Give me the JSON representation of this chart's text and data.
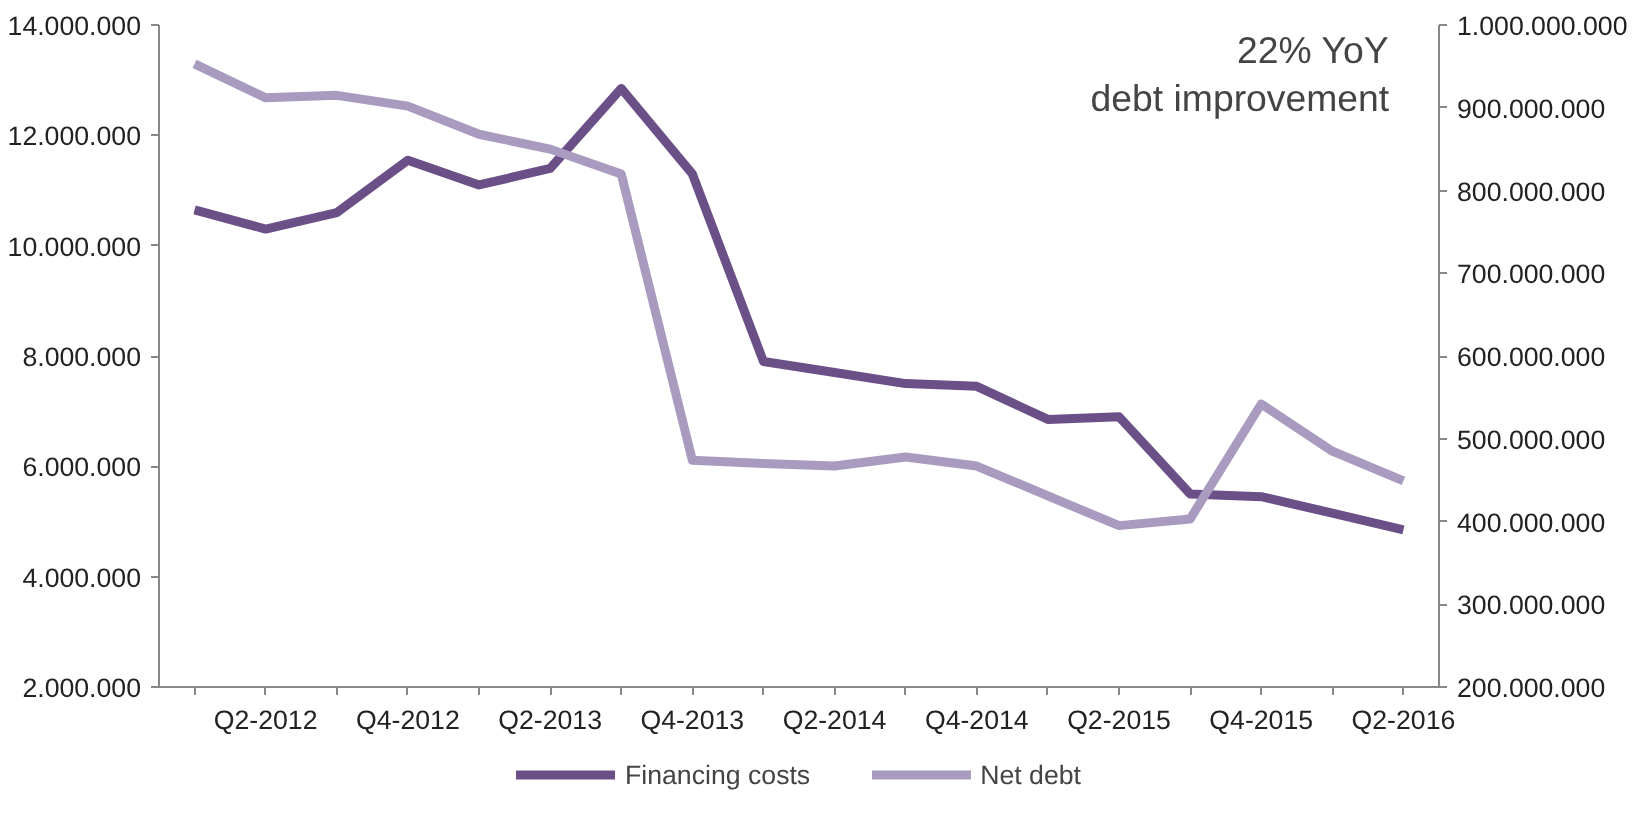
{
  "chart_data": {
    "type": "line",
    "categories": [
      null,
      "Q2-2012",
      null,
      "Q4-2012",
      null,
      "Q2-2013",
      null,
      "Q4-2013",
      null,
      "Q2-2014",
      null,
      "Q4-2014",
      null,
      "Q2-2015",
      null,
      "Q4-2015",
      null,
      "Q2-2016"
    ],
    "series": [
      {
        "name": "Financing costs",
        "color": "#6b5088",
        "values": [
          10650000,
          10300000,
          10600000,
          11550000,
          11100000,
          11400000,
          12850000,
          11300000,
          7900000,
          7700000,
          7500000,
          7450000,
          6850000,
          6900000,
          5500000,
          5450000,
          5150000,
          4850000
        ]
      },
      {
        "name": "Net debt",
        "color": "#a99bbf",
        "axis": "y2",
        "values": [
          953000000,
          912000000,
          915000000,
          902000000,
          868000000,
          850000000,
          820000000,
          474000000,
          470000000,
          467000000,
          478000000,
          467000000,
          431000000,
          395000000,
          403000000,
          542000000,
          485000000,
          449000000
        ]
      }
    ],
    "ylim": [
      2000000,
      14000000
    ],
    "yticks": [
      {
        "value": 2000000,
        "label": "2.000.000"
      },
      {
        "value": 4000000,
        "label": "4.000.000"
      },
      {
        "value": 6000000,
        "label": "6.000.000"
      },
      {
        "value": 8000000,
        "label": "8.000.000"
      },
      {
        "value": 10000000,
        "label": "10.000.000"
      },
      {
        "value": 12000000,
        "label": "12.000.000"
      },
      {
        "value": 14000000,
        "label": "14.000.000"
      }
    ],
    "y2lim": [
      200000000,
      1000000000
    ],
    "y2ticks": [
      {
        "value": 200000000,
        "label": "200.000.000"
      },
      {
        "value": 300000000,
        "label": "300.000.000"
      },
      {
        "value": 400000000,
        "label": "400.000.000"
      },
      {
        "value": 500000000,
        "label": "500.000.000"
      },
      {
        "value": 600000000,
        "label": "600.000.000"
      },
      {
        "value": 700000000,
        "label": "700.000.000"
      },
      {
        "value": 800000000,
        "label": "800.000.000"
      },
      {
        "value": 900000000,
        "label": "900.000.000"
      },
      {
        "value": 1000000000,
        "label": "1.000.000.000"
      }
    ],
    "annotations": [
      "22% YoY\ndebt improvement"
    ],
    "legend": "bottom",
    "grid": false,
    "marker": "none",
    "line_style": "solid"
  }
}
